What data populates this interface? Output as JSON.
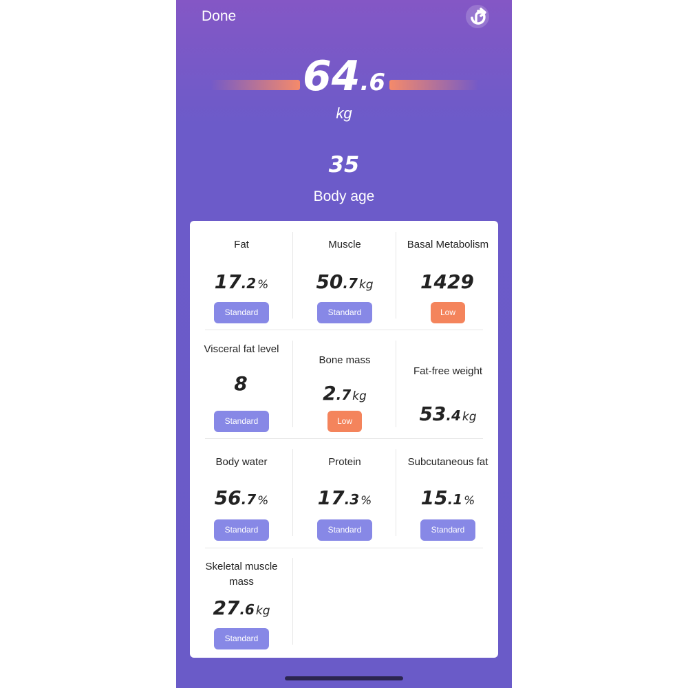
{
  "header": {
    "done_label": "Done",
    "share_icon": "share-refresh-icon"
  },
  "weight": {
    "main": "64",
    "dec": ".6",
    "unit": "kg"
  },
  "body_age": {
    "value": "35",
    "label": "Body age"
  },
  "colors": {
    "standard": "#8788e6",
    "low": "#f4845c",
    "background": "#6a5bc8"
  },
  "metrics": [
    {
      "label": "Fat",
      "main": "17",
      "dec": ".2",
      "unit": "%",
      "status": "Standard"
    },
    {
      "label": "Muscle",
      "main": "50",
      "dec": ".7",
      "unit": "kg",
      "status": "Standard"
    },
    {
      "label": "Basal Metabolism",
      "main": "1429",
      "dec": "",
      "unit": "",
      "status": "Low"
    },
    {
      "label": "Visceral fat level",
      "main": "8",
      "dec": "",
      "unit": "",
      "status": "Standard"
    },
    {
      "label": "Bone mass",
      "main": "2",
      "dec": ".7",
      "unit": "kg",
      "status": "Low"
    },
    {
      "label": "Fat-free weight",
      "main": "53",
      "dec": ".4",
      "unit": "kg",
      "status": ""
    },
    {
      "label": "Body water",
      "main": "56",
      "dec": ".7",
      "unit": "%",
      "status": "Standard"
    },
    {
      "label": "Protein",
      "main": "17",
      "dec": ".3",
      "unit": "%",
      "status": "Standard"
    },
    {
      "label": "Subcutaneous fat",
      "main": "15",
      "dec": ".1",
      "unit": "%",
      "status": "Standard"
    },
    {
      "label": "Skeletal muscle mass",
      "main": "27",
      "dec": ".6",
      "unit": "kg",
      "status": "Standard"
    }
  ]
}
